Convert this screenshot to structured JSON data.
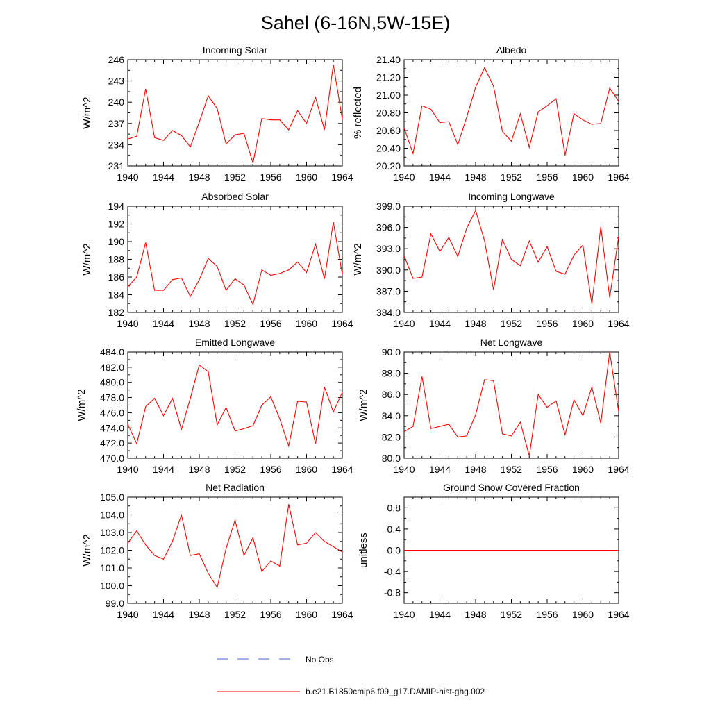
{
  "main_title": "Sahel (6-16N,5W-15E)",
  "colors": {
    "model_line": "#ff0000",
    "obs_line": "#0000cc",
    "axis": "#000000"
  },
  "legend": {
    "items": [
      {
        "label": "No Obs",
        "style": "dashed",
        "color": "#4466cc"
      },
      {
        "label": "b.e21.B1850cmip6.f09_g17.DAMIP-hist-ghg.002",
        "style": "solid",
        "color": "#ff0000"
      }
    ]
  },
  "chart_data": [
    {
      "type": "line",
      "title": "Incoming Solar",
      "ylabel": "W/m^2",
      "xlim": [
        1940,
        1964
      ],
      "ylim": [
        231,
        246
      ],
      "yticks": [
        231,
        234,
        237,
        240,
        243,
        246
      ],
      "ytick_labels": [
        "231",
        "234",
        "237",
        "240",
        "243",
        "246"
      ],
      "xticks": [
        1940,
        1944,
        1948,
        1952,
        1956,
        1960,
        1964
      ],
      "xtick_labels": [
        "1940",
        "1944",
        "1948",
        "1952",
        "1956",
        "1960",
        "1964"
      ],
      "series": [
        {
          "x": [
            1940,
            1941,
            1942,
            1943,
            1944,
            1945,
            1946,
            1947,
            1948,
            1949,
            1950,
            1951,
            1952,
            1953,
            1954,
            1955,
            1956,
            1957,
            1958,
            1959,
            1960,
            1961,
            1962,
            1963,
            1964
          ],
          "values": [
            234.8,
            235.2,
            241.9,
            235.0,
            234.6,
            236.0,
            235.3,
            233.7,
            237.2,
            240.9,
            239.1,
            234.1,
            235.4,
            235.6,
            231.4,
            237.7,
            237.5,
            237.5,
            236.1,
            238.8,
            237.0,
            240.7,
            236.1,
            245.3,
            237.6
          ]
        }
      ]
    },
    {
      "type": "line",
      "title": "Albedo",
      "ylabel": "% reflected",
      "xlim": [
        1940,
        1964
      ],
      "ylim": [
        20.2,
        21.4
      ],
      "yticks": [
        20.2,
        20.4,
        20.6,
        20.8,
        21.0,
        21.2,
        21.4
      ],
      "ytick_labels": [
        "20.20",
        "20.40",
        "20.60",
        "20.80",
        "21.00",
        "21.20",
        "21.40"
      ],
      "xticks": [
        1940,
        1944,
        1948,
        1952,
        1956,
        1960,
        1964
      ],
      "xtick_labels": [
        "1940",
        "1944",
        "1948",
        "1952",
        "1956",
        "1960",
        "1964"
      ],
      "series": [
        {
          "x": [
            1940,
            1941,
            1942,
            1943,
            1944,
            1945,
            1946,
            1947,
            1948,
            1949,
            1950,
            1951,
            1952,
            1953,
            1954,
            1955,
            1956,
            1957,
            1958,
            1959,
            1960,
            1961,
            1962,
            1963,
            1964
          ],
          "values": [
            20.63,
            20.34,
            20.88,
            20.84,
            20.69,
            20.7,
            20.44,
            20.75,
            21.09,
            21.31,
            21.1,
            20.59,
            20.48,
            20.79,
            20.41,
            20.81,
            20.88,
            20.96,
            20.32,
            20.79,
            20.72,
            20.67,
            20.68,
            21.08,
            20.93
          ]
        }
      ]
    },
    {
      "type": "line",
      "title": "Absorbed Solar",
      "ylabel": "W/m^2",
      "xlim": [
        1940,
        1964
      ],
      "ylim": [
        182,
        194
      ],
      "yticks": [
        182,
        184,
        186,
        188,
        190,
        192,
        194
      ],
      "ytick_labels": [
        "182",
        "184",
        "186",
        "188",
        "190",
        "192",
        "194"
      ],
      "xticks": [
        1940,
        1944,
        1948,
        1952,
        1956,
        1960,
        1964
      ],
      "xtick_labels": [
        "1940",
        "1944",
        "1948",
        "1952",
        "1956",
        "1960",
        "1964"
      ],
      "series": [
        {
          "x": [
            1940,
            1941,
            1942,
            1943,
            1944,
            1945,
            1946,
            1947,
            1948,
            1949,
            1950,
            1951,
            1952,
            1953,
            1954,
            1955,
            1956,
            1957,
            1958,
            1959,
            1960,
            1961,
            1962,
            1963,
            1964
          ],
          "values": [
            184.9,
            186.0,
            189.9,
            184.5,
            184.5,
            185.7,
            185.9,
            183.8,
            185.7,
            188.1,
            187.2,
            184.5,
            185.8,
            185.1,
            182.9,
            186.8,
            186.2,
            186.4,
            186.8,
            187.7,
            186.5,
            189.7,
            185.8,
            192.2,
            186.3
          ]
        }
      ]
    },
    {
      "type": "line",
      "title": "Incoming Longwave",
      "ylabel": "W/m^2",
      "xlim": [
        1940,
        1964
      ],
      "ylim": [
        384,
        399
      ],
      "yticks": [
        384,
        387,
        390,
        393,
        396,
        399
      ],
      "ytick_labels": [
        "384.0",
        "387.0",
        "390.0",
        "393.0",
        "396.0",
        "399.0"
      ],
      "xticks": [
        1940,
        1944,
        1948,
        1952,
        1956,
        1960,
        1964
      ],
      "xtick_labels": [
        "1940",
        "1944",
        "1948",
        "1952",
        "1956",
        "1960",
        "1964"
      ],
      "series": [
        {
          "x": [
            1940,
            1941,
            1942,
            1943,
            1944,
            1945,
            1946,
            1947,
            1948,
            1949,
            1950,
            1951,
            1952,
            1953,
            1954,
            1955,
            1956,
            1957,
            1958,
            1959,
            1960,
            1961,
            1962,
            1963,
            1964
          ],
          "values": [
            392.0,
            388.8,
            389.0,
            395.1,
            392.6,
            394.6,
            391.9,
            395.9,
            398.4,
            394.1,
            387.2,
            394.3,
            391.5,
            390.6,
            394.1,
            391.1,
            393.3,
            389.8,
            389.4,
            392.1,
            393.5,
            385.2,
            396.1,
            386.1,
            394.7
          ]
        }
      ]
    },
    {
      "type": "line",
      "title": "Emitted Longwave",
      "ylabel": "W/m^2",
      "xlim": [
        1940,
        1964
      ],
      "ylim": [
        470,
        484
      ],
      "yticks": [
        470,
        472,
        474,
        476,
        478,
        480,
        482,
        484
      ],
      "ytick_labels": [
        "470.0",
        "472.0",
        "474.0",
        "476.0",
        "478.0",
        "480.0",
        "482.0",
        "484.0"
      ],
      "xticks": [
        1940,
        1944,
        1948,
        1952,
        1956,
        1960,
        1964
      ],
      "xtick_labels": [
        "1940",
        "1944",
        "1948",
        "1952",
        "1956",
        "1960",
        "1964"
      ],
      "series": [
        {
          "x": [
            1940,
            1941,
            1942,
            1943,
            1944,
            1945,
            1946,
            1947,
            1948,
            1949,
            1950,
            1951,
            1952,
            1953,
            1954,
            1955,
            1956,
            1957,
            1958,
            1959,
            1960,
            1961,
            1962,
            1963,
            1964
          ],
          "values": [
            474.5,
            471.9,
            476.8,
            477.9,
            475.6,
            477.9,
            473.8,
            477.9,
            482.3,
            481.4,
            474.4,
            476.7,
            473.6,
            473.9,
            474.3,
            477.0,
            478.1,
            475.2,
            471.6,
            477.5,
            477.4,
            471.9,
            479.4,
            476.1,
            478.7
          ]
        }
      ]
    },
    {
      "type": "line",
      "title": "Net Longwave",
      "ylabel": "W/m^2",
      "xlim": [
        1940,
        1964
      ],
      "ylim": [
        80,
        90
      ],
      "yticks": [
        80,
        82,
        84,
        86,
        88,
        90
      ],
      "ytick_labels": [
        "80.0",
        "82.0",
        "84.0",
        "86.0",
        "88.0",
        "90.0"
      ],
      "xticks": [
        1940,
        1944,
        1948,
        1952,
        1956,
        1960,
        1964
      ],
      "xtick_labels": [
        "1940",
        "1944",
        "1948",
        "1952",
        "1956",
        "1960",
        "1964"
      ],
      "series": [
        {
          "x": [
            1940,
            1941,
            1942,
            1943,
            1944,
            1945,
            1946,
            1947,
            1948,
            1949,
            1950,
            1951,
            1952,
            1953,
            1954,
            1955,
            1956,
            1957,
            1958,
            1959,
            1960,
            1961,
            1962,
            1963,
            1964
          ],
          "values": [
            82.5,
            83.0,
            87.7,
            82.8,
            83.0,
            83.2,
            82.0,
            82.1,
            84.1,
            87.4,
            87.3,
            82.3,
            82.1,
            83.4,
            80.2,
            86.0,
            84.8,
            85.4,
            82.2,
            85.5,
            84.0,
            86.7,
            83.3,
            90.0,
            84.4
          ]
        }
      ]
    },
    {
      "type": "line",
      "title": "Net Radiation",
      "ylabel": "W/m^2",
      "xlim": [
        1940,
        1964
      ],
      "ylim": [
        99,
        105
      ],
      "yticks": [
        99,
        100,
        101,
        102,
        103,
        104,
        105
      ],
      "ytick_labels": [
        "99.0",
        "100.0",
        "101.0",
        "102.0",
        "103.0",
        "104.0",
        "105.0"
      ],
      "xticks": [
        1940,
        1944,
        1948,
        1952,
        1956,
        1960,
        1964
      ],
      "xtick_labels": [
        "1940",
        "1944",
        "1948",
        "1952",
        "1956",
        "1960",
        "1964"
      ],
      "series": [
        {
          "x": [
            1940,
            1941,
            1942,
            1943,
            1944,
            1945,
            1946,
            1947,
            1948,
            1949,
            1950,
            1951,
            1952,
            1953,
            1954,
            1955,
            1956,
            1957,
            1958,
            1959,
            1960,
            1961,
            1962,
            1963,
            1964
          ],
          "values": [
            102.4,
            103.1,
            102.3,
            101.7,
            101.5,
            102.5,
            104.0,
            101.7,
            101.8,
            100.7,
            99.9,
            102.1,
            103.7,
            101.7,
            102.7,
            100.8,
            101.4,
            101.1,
            104.6,
            102.3,
            102.4,
            103.0,
            102.5,
            102.2,
            101.9
          ]
        }
      ]
    },
    {
      "type": "line",
      "title": "Ground Snow Covered Fraction",
      "ylabel": "unitless",
      "xlim": [
        1940,
        1964
      ],
      "ylim": [
        -1.0,
        1.0
      ],
      "yticks": [
        -0.8,
        -0.4,
        0.0,
        0.4,
        0.8
      ],
      "ytick_labels": [
        "-0.8",
        "-0.4",
        "0.0",
        "0.4",
        "0.8"
      ],
      "xticks": [
        1940,
        1944,
        1948,
        1952,
        1956,
        1960,
        1964
      ],
      "xtick_labels": [
        "1940",
        "1944",
        "1948",
        "1952",
        "1956",
        "1960",
        "1964"
      ],
      "series": [
        {
          "x": [
            1940,
            1941,
            1942,
            1943,
            1944,
            1945,
            1946,
            1947,
            1948,
            1949,
            1950,
            1951,
            1952,
            1953,
            1954,
            1955,
            1956,
            1957,
            1958,
            1959,
            1960,
            1961,
            1962,
            1963,
            1964
          ],
          "values": [
            0,
            0,
            0,
            0,
            0,
            0,
            0,
            0,
            0,
            0,
            0,
            0,
            0,
            0,
            0,
            0,
            0,
            0,
            0,
            0,
            0,
            0,
            0,
            0,
            0
          ]
        }
      ]
    }
  ]
}
